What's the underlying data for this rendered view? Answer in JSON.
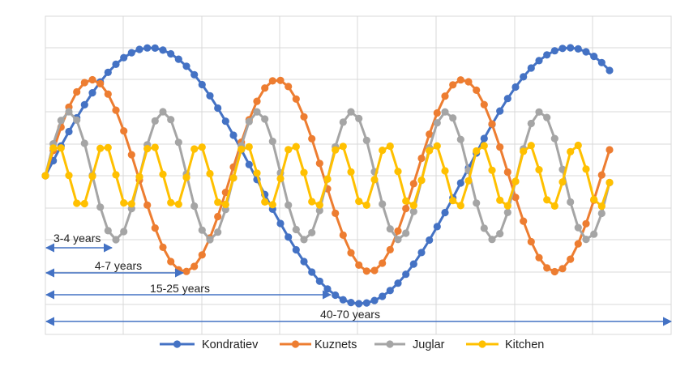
{
  "chart_data": {
    "type": "line",
    "title": "",
    "xlabel": "",
    "ylabel": "",
    "grid": true,
    "x_range": [
      0,
      70
    ],
    "y_range": [
      -1,
      1
    ],
    "series": [
      {
        "name": "Kondratiev",
        "color": "#4472C4",
        "period": 52,
        "amplitude": 1.0
      },
      {
        "name": "Kuznets",
        "color": "#ED7D31",
        "period": 23,
        "amplitude": 0.75
      },
      {
        "name": "Juglar",
        "color": "#A5A5A5",
        "period": 11.7,
        "amplitude": 0.5
      },
      {
        "name": "Kitchen",
        "color": "#FFC000",
        "period": 5.85,
        "amplitude": 0.25
      }
    ],
    "annotations": [
      {
        "label": "3-4 years",
        "from": 0,
        "to": 7.5
      },
      {
        "label": "4-7 years",
        "from": 0,
        "to": 15.5
      },
      {
        "label": "15-25 years",
        "from": 0,
        "to": 31.5
      },
      {
        "label": "40-70 years",
        "from": 0,
        "to": 70
      }
    ],
    "legend_position": "bottom"
  }
}
